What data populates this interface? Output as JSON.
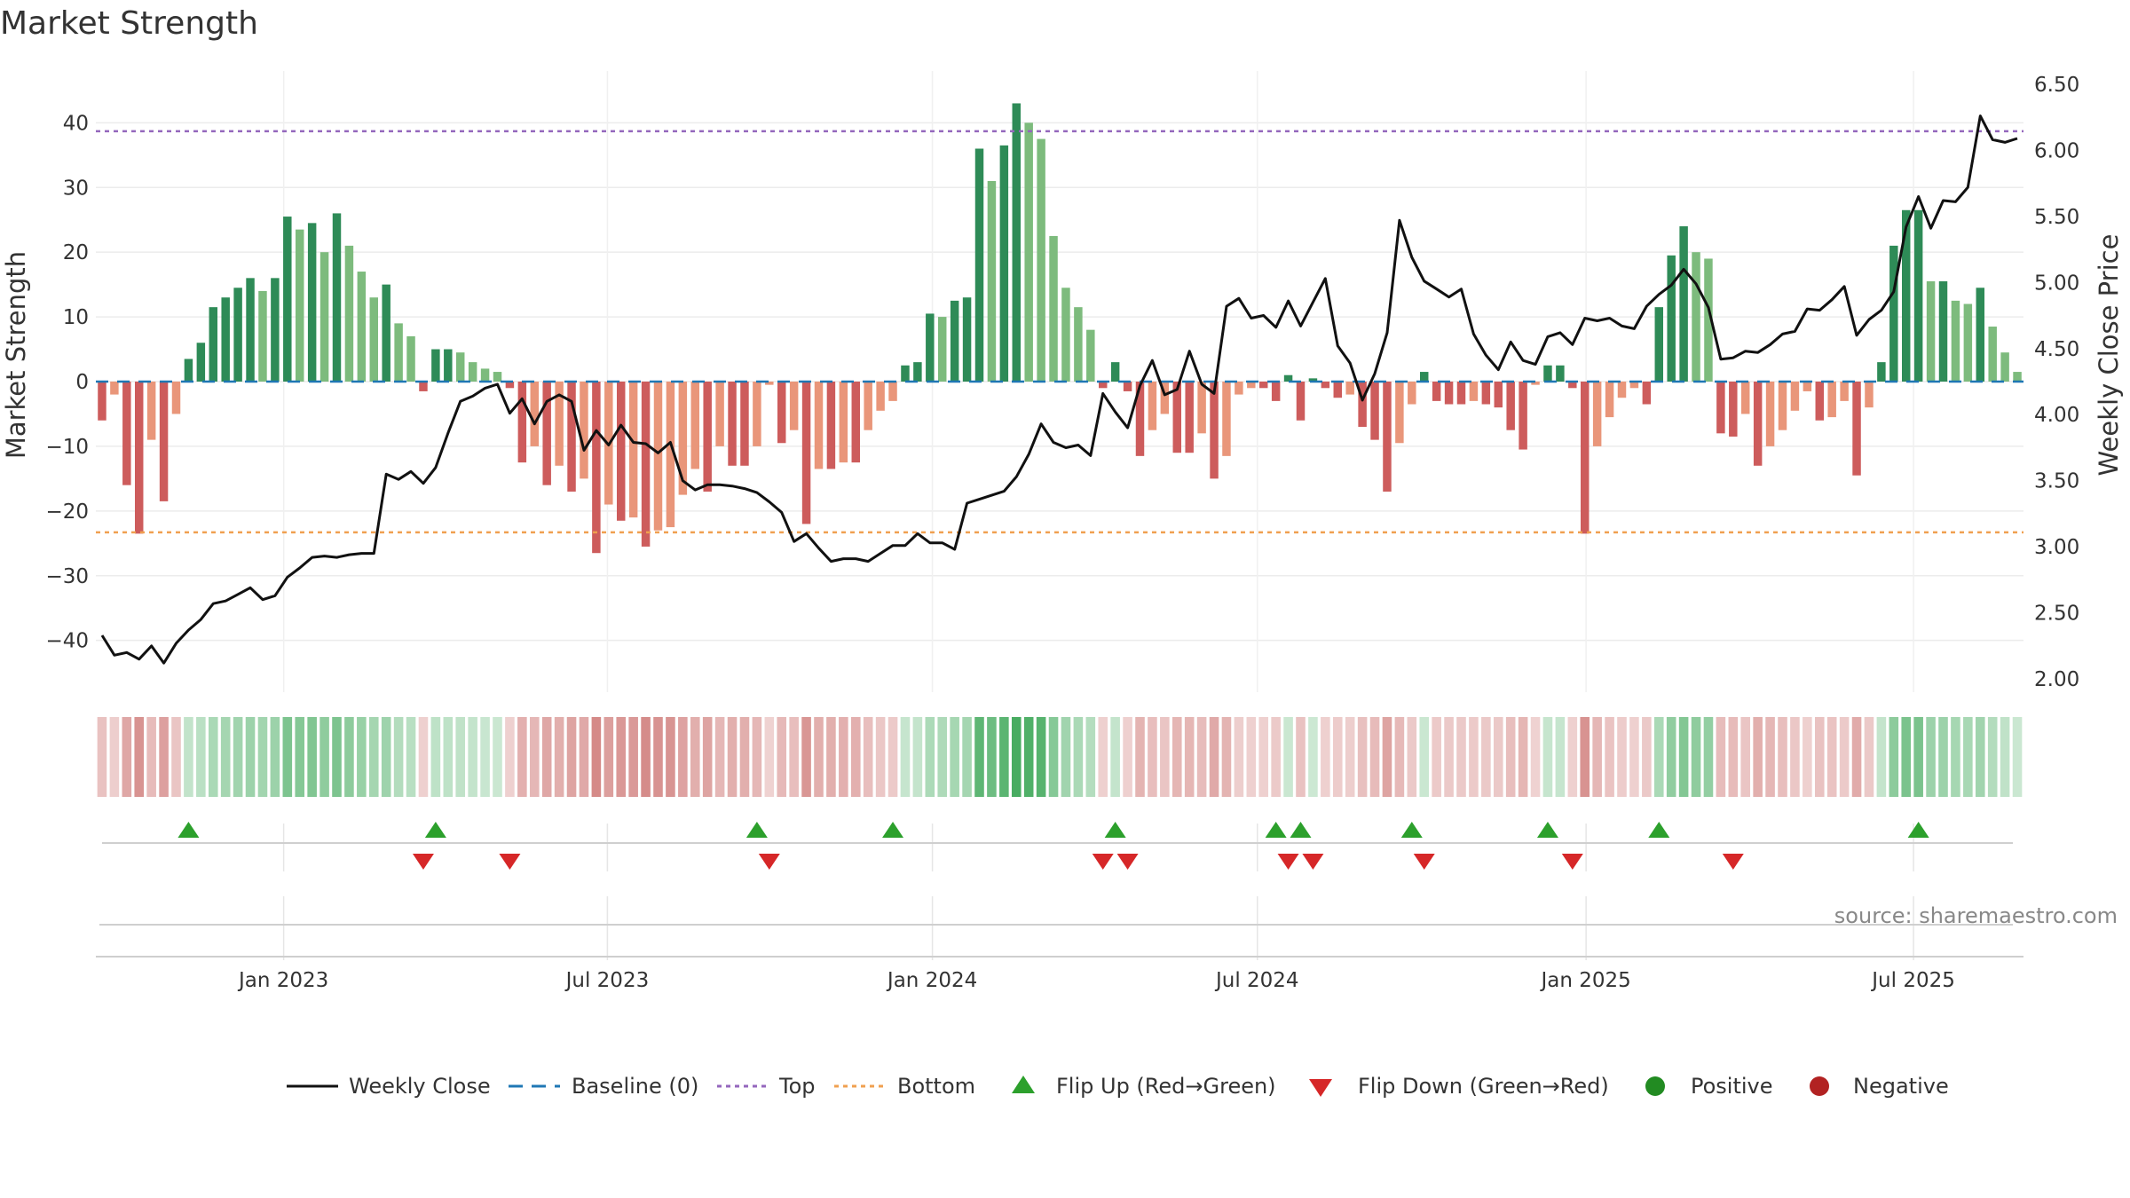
{
  "title": "Market Strength",
  "source": "source: sharemaestro.com",
  "colors": {
    "strong_green": "#2e8b57",
    "light_green": "#7dbb7d",
    "strong_red": "#cd5c5c",
    "light_red": "#e9967a",
    "line": "#111111",
    "baseline": "#1f77b4",
    "top": "#9467bd",
    "bottom": "#f0a050",
    "flip_up": "#2ca02c",
    "flip_down": "#d62728",
    "positive": "#228b22",
    "negative": "#b22222"
  },
  "chart_data": {
    "type": "bar",
    "title": "Market Strength",
    "ylabel_left": "Market Strength",
    "ylabel_right": "Weekly Close Price",
    "ylim_left": [
      -48,
      48
    ],
    "ylim_right": [
      1.9,
      6.6
    ],
    "left_ticks": [
      40,
      30,
      20,
      10,
      0,
      -10,
      -20,
      -30,
      -40
    ],
    "left_tick_labels": [
      "40",
      "30",
      "20",
      "10",
      "0",
      "−10",
      "−20",
      "−30",
      "−40"
    ],
    "right_ticks": [
      6.5,
      6.0,
      5.5,
      5.0,
      4.5,
      4.0,
      3.5,
      3.0,
      2.5,
      2.0
    ],
    "right_tick_labels": [
      "6.50",
      "6.00",
      "5.50",
      "5.00",
      "4.50",
      "4.00",
      "3.50",
      "3.00",
      "2.50",
      "2.00"
    ],
    "x_ticks": [
      "Jan 2023",
      "Jul 2023",
      "Jan 2024",
      "Jul 2024",
      "Jan 2025",
      "Jul 2025"
    ],
    "x_tick_positions": [
      15.2,
      41.4,
      67.7,
      94.0,
      120.6,
      147.1
    ],
    "top_level": 38.7,
    "bottom_level": -23.3,
    "strength": [
      -6,
      -2,
      -16,
      -23.5,
      -9,
      -18.5,
      -5,
      3.5,
      6,
      11.5,
      13,
      14.5,
      16,
      14,
      16,
      25.5,
      23.5,
      24.5,
      20,
      26,
      21,
      17,
      13,
      15,
      9,
      7,
      -1.5,
      5,
      5,
      4.5,
      3,
      2,
      1.5,
      -1,
      -12.5,
      -10,
      -16,
      -13,
      -17,
      -15,
      -26.5,
      -19,
      -21.5,
      -21,
      -25.5,
      -23,
      -22.5,
      -17.5,
      -13.5,
      -17,
      -10,
      -13,
      -13,
      -10,
      -0.5,
      -9.5,
      -7.5,
      -22,
      -13.5,
      -13.5,
      -12.5,
      -12.5,
      -7.5,
      -4.5,
      -3,
      2.5,
      3,
      10.5,
      10,
      12.5,
      13,
      36,
      31,
      36.5,
      43,
      40,
      37.5,
      22.5,
      14.5,
      11.5,
      8,
      -1,
      3,
      -1.5,
      -11.5,
      -7.5,
      -5,
      -11,
      -11,
      -8,
      -15,
      -11.5,
      -2,
      -1,
      -1,
      -3,
      1,
      -6,
      0.5,
      -1,
      -2.5,
      -2,
      -7,
      -9,
      -17,
      -9.5,
      -3.5,
      1.5,
      -3,
      -3.5,
      -3.5,
      -3,
      -3.5,
      -4,
      -7.5,
      -10.5,
      -0.5,
      2.5,
      2.5,
      -1,
      -23.5,
      -10,
      -5.5,
      -2.5,
      -1,
      -3.5,
      11.5,
      19.5,
      24,
      20,
      19,
      -8,
      -8.5,
      -5,
      -13,
      -10,
      -7.5,
      -4.5,
      -1.5,
      -6,
      -5.5,
      -3,
      -14.5,
      -4,
      3,
      21,
      26.5,
      26.5,
      15.5,
      15.5,
      12.5,
      12,
      14.5,
      8.5,
      4.5,
      1.5
    ],
    "close": [
      2.33,
      2.18,
      2.2,
      2.15,
      2.25,
      2.12,
      2.27,
      2.37,
      2.45,
      2.57,
      2.59,
      2.64,
      2.69,
      2.6,
      2.63,
      2.77,
      2.84,
      2.92,
      2.93,
      2.92,
      2.94,
      2.95,
      2.95,
      3.55,
      3.51,
      3.57,
      3.48,
      3.6,
      3.86,
      4.1,
      4.14,
      4.2,
      4.23,
      4.01,
      4.12,
      3.93,
      4.1,
      4.15,
      4.1,
      3.73,
      3.88,
      3.77,
      3.92,
      3.79,
      3.78,
      3.71,
      3.79,
      3.5,
      3.43,
      3.47,
      3.47,
      3.46,
      3.44,
      3.41,
      3.34,
      3.26,
      3.04,
      3.1,
      2.99,
      2.89,
      2.91,
      2.91,
      2.89,
      2.95,
      3.01,
      3.01,
      3.1,
      3.03,
      3.03,
      2.98,
      3.33,
      3.36,
      3.39,
      3.42,
      3.53,
      3.7,
      3.93,
      3.79,
      3.75,
      3.77,
      3.69,
      4.16,
      4.02,
      3.9,
      4.22,
      4.41,
      4.15,
      4.19,
      4.48,
      4.23,
      4.16,
      4.82,
      4.88,
      4.73,
      4.75,
      4.66,
      4.86,
      4.67,
      4.85,
      5.03,
      4.52,
      4.39,
      4.11,
      4.31,
      4.62,
      5.47,
      5.19,
      5.01,
      4.95,
      4.89,
      4.95,
      4.61,
      4.45,
      4.34,
      4.55,
      4.41,
      4.38,
      4.59,
      4.62,
      4.53,
      4.73,
      4.71,
      4.73,
      4.67,
      4.65,
      4.82,
      4.91,
      4.98,
      5.1,
      4.99,
      4.81,
      4.42,
      4.43,
      4.48,
      4.47,
      4.53,
      4.61,
      4.63,
      4.8,
      4.79,
      4.87,
      4.97,
      4.6,
      4.72,
      4.79,
      4.93,
      5.42,
      5.65,
      5.41,
      5.62,
      5.61,
      5.72,
      6.26,
      6.08,
      6.06,
      6.09
    ],
    "flip_up": [
      7,
      27,
      53,
      64,
      82,
      95,
      97,
      106,
      117,
      126,
      147
    ],
    "flip_down": [
      26,
      33,
      54,
      81,
      83,
      96,
      98,
      107,
      119,
      132
    ],
    "legend": [
      "Weekly Close",
      "Baseline (0)",
      "Top",
      "Bottom",
      "Flip Up (Red→Green)",
      "Flip Down (Green→Red)",
      "Positive",
      "Negative"
    ]
  }
}
